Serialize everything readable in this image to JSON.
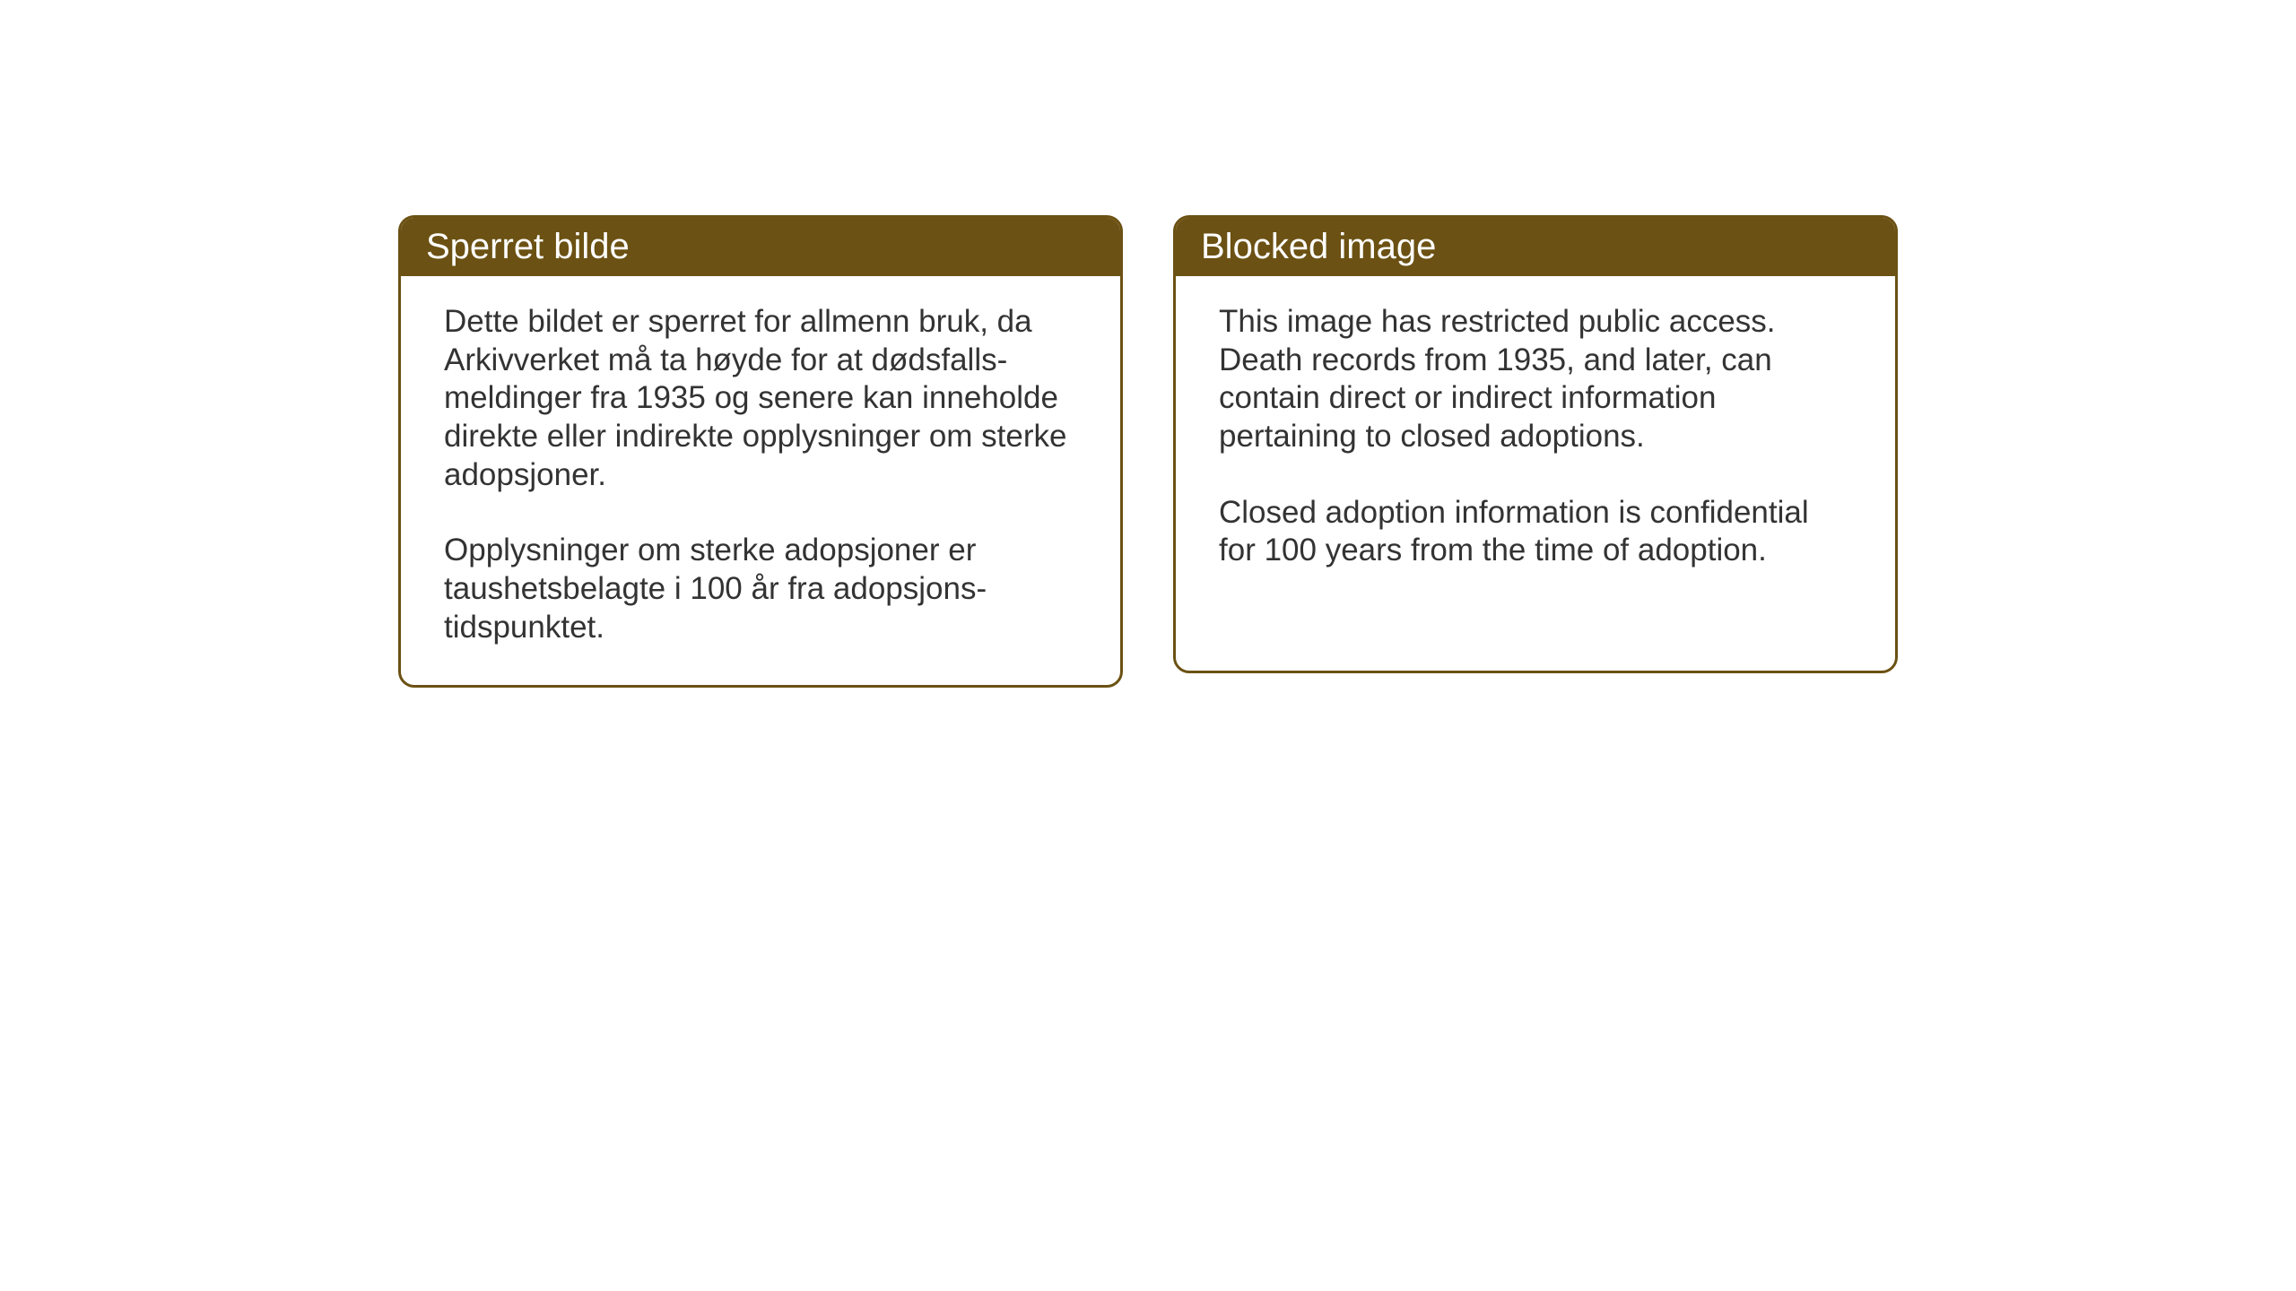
{
  "background_color": "#ffffff",
  "card_border_color": "#6b5113",
  "card_header_bg": "#6b5113",
  "card_header_text_color": "#ffffff",
  "card_body_text_color": "#333333",
  "header_font_size": 40,
  "body_font_size": 35,
  "left_card": {
    "title": "Sperret bilde",
    "paragraph1": "Dette bildet er sperret for allmenn bruk, da Arkivverket må ta høyde for at dødsfalls-meldinger fra 1935 og senere kan inneholde direkte eller indirekte opplysninger om sterke adopsjoner.",
    "paragraph2": "Opplysninger om sterke adopsjoner er taushetsbelagte i 100 år fra adopsjons-tidspunktet."
  },
  "right_card": {
    "title": "Blocked image",
    "paragraph1": "This image has restricted public access. Death records from 1935, and later, can contain direct or indirect information pertaining to closed adoptions.",
    "paragraph2": "Closed adoption information is confidential for 100 years from the time of adoption."
  }
}
